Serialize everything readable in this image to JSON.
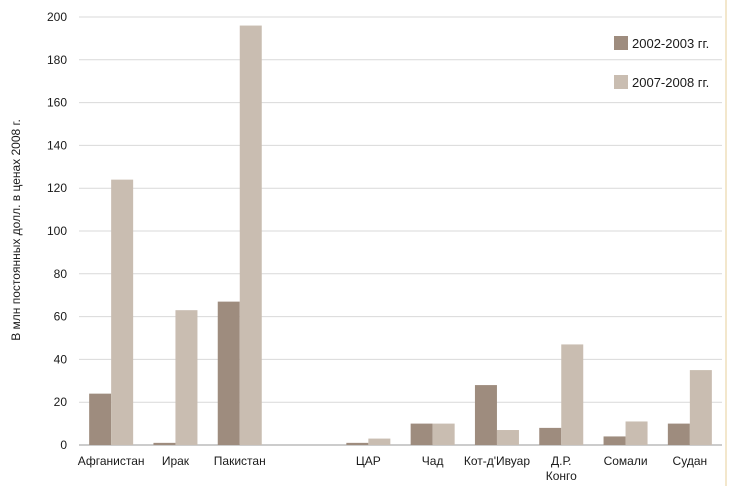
{
  "chart_data": {
    "type": "bar",
    "ylabel": "В млн постоянных долл. в ценах 2008 г.",
    "ylim": [
      0,
      200
    ],
    "yticks": [
      0,
      20,
      40,
      60,
      80,
      100,
      120,
      140,
      160,
      180,
      200
    ],
    "grid": true,
    "legend_position": "top-right",
    "categories": [
      {
        "label": [
          "Афганистан"
        ]
      },
      {
        "label": [
          "Ирак"
        ]
      },
      {
        "label": [
          "Пакистан"
        ]
      },
      {
        "label": [
          ""
        ]
      },
      {
        "label": [
          "ЦАР"
        ]
      },
      {
        "label": [
          "Чад"
        ]
      },
      {
        "label": [
          "Кот-д'Ивуар"
        ]
      },
      {
        "label": [
          "Д.Р.",
          "Конго"
        ]
      },
      {
        "label": [
          "Сомали"
        ]
      },
      {
        "label": [
          "Судан"
        ]
      }
    ],
    "series": [
      {
        "name": "2002-2003 гг.",
        "color": "#9e8c7e",
        "values": [
          24,
          1,
          67,
          null,
          1,
          10,
          28,
          8,
          4,
          10
        ]
      },
      {
        "name": "2007-2008 гг.",
        "color": "#c9bdb1",
        "values": [
          124,
          63,
          196,
          null,
          3,
          10,
          7,
          47,
          11,
          35
        ]
      }
    ]
  }
}
